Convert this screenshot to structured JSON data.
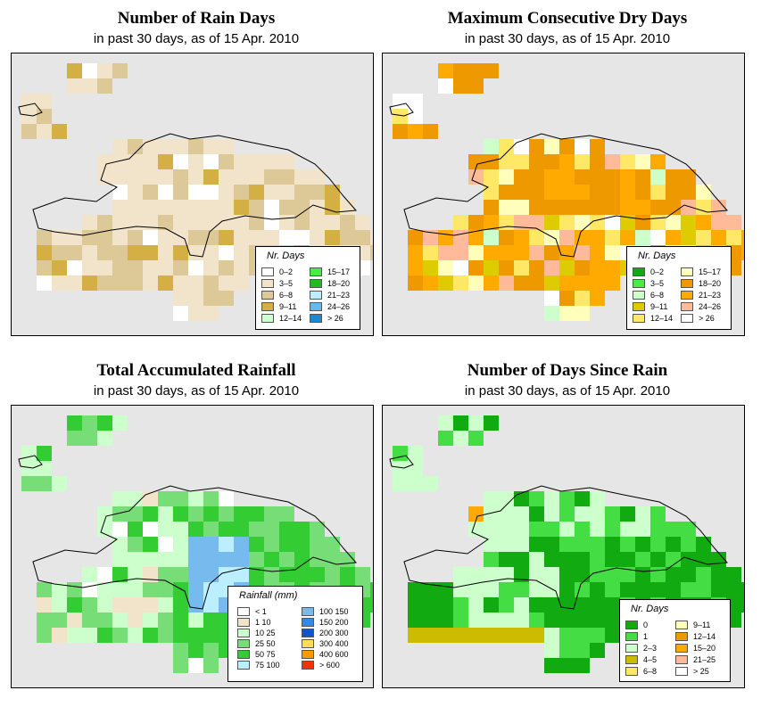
{
  "panels": [
    {
      "id": "rain-days",
      "title": "Number of Rain Days",
      "subtitle": "in past 30 days, as of  15 Apr. 2010",
      "legend": {
        "title": "Nr. Days",
        "items": [
          {
            "label": "0–2",
            "color": "#ffffff"
          },
          {
            "label": "3–5",
            "color": "#f2e4cb"
          },
          {
            "label": "6–8",
            "color": "#ddc897"
          },
          {
            "label": "9–11",
            "color": "#d4b044"
          },
          {
            "label": "12–14",
            "color": "#cfffcf"
          },
          {
            "label": "15–17",
            "color": "#44ee44"
          },
          {
            "label": "18–20",
            "color": "#22bb22"
          },
          {
            "label": "21–23",
            "color": "#bbeeff"
          },
          {
            "label": "24–26",
            "color": "#66bbee"
          },
          {
            "label": "> 26",
            "color": "#2288cc"
          }
        ]
      }
    },
    {
      "id": "max-dry-days",
      "title": "Maximum Consecutive Dry Days",
      "subtitle": "in past 30 days, as of  15 Apr. 2010",
      "legend": {
        "title": "Nr. Days",
        "items": [
          {
            "label": "0–2",
            "color": "#11aa11"
          },
          {
            "label": "3–5",
            "color": "#44ee44"
          },
          {
            "label": "6–8",
            "color": "#ccffcc"
          },
          {
            "label": "9–11",
            "color": "#ddcc00"
          },
          {
            "label": "12–14",
            "color": "#ffe866"
          },
          {
            "label": "15–17",
            "color": "#ffffbb"
          },
          {
            "label": "18–20",
            "color": "#ee9900"
          },
          {
            "label": "21–23",
            "color": "#ffaa00"
          },
          {
            "label": "24–26",
            "color": "#ffbb99"
          },
          {
            "label": "> 26",
            "color": "#ffffff"
          }
        ]
      }
    },
    {
      "id": "total-rainfall",
      "title": "Total Accumulated Rainfall",
      "subtitle": "in past 30 days, as of  15 Apr. 2010",
      "legend": {
        "title": "Rainfall (mm)",
        "items": [
          {
            "label": "< 1",
            "color": "#ffffff"
          },
          {
            "label": "1    10",
            "color": "#f2e4cb"
          },
          {
            "label": "10    25",
            "color": "#ccffcc"
          },
          {
            "label": "25    50",
            "color": "#77dd77"
          },
          {
            "label": "50    75",
            "color": "#33cc33"
          },
          {
            "label": "75   100",
            "color": "#bbeeff"
          },
          {
            "label": "100   150",
            "color": "#77bbee"
          },
          {
            "label": "150   200",
            "color": "#3388ee"
          },
          {
            "label": "200   300",
            "color": "#1155cc"
          },
          {
            "label": "300   400",
            "color": "#ffdd55"
          },
          {
            "label": "400   600",
            "color": "#ff9900"
          },
          {
            "label": "> 600",
            "color": "#ee3300"
          }
        ]
      }
    },
    {
      "id": "days-since-rain",
      "title": "Number of Days Since Rain",
      "subtitle": "in past 30 days, as of  15 Apr. 2010",
      "legend": {
        "title": "Nr. Days",
        "items": [
          {
            "label": "0",
            "color": "#11aa11"
          },
          {
            "label": "1",
            "color": "#44dd44"
          },
          {
            "label": "2–3",
            "color": "#ccffcc"
          },
          {
            "label": "4–5",
            "color": "#ccbb00"
          },
          {
            "label": "6–8",
            "color": "#ffe866"
          },
          {
            "label": "9–11",
            "color": "#ffffbb"
          },
          {
            "label": "12–14",
            "color": "#ee9900"
          },
          {
            "label": "15–20",
            "color": "#ffaa00"
          },
          {
            "label": "21–25",
            "color": "#ffbb99"
          },
          {
            "label": "> 25",
            "color": "#ffffff"
          }
        ]
      }
    }
  ]
}
